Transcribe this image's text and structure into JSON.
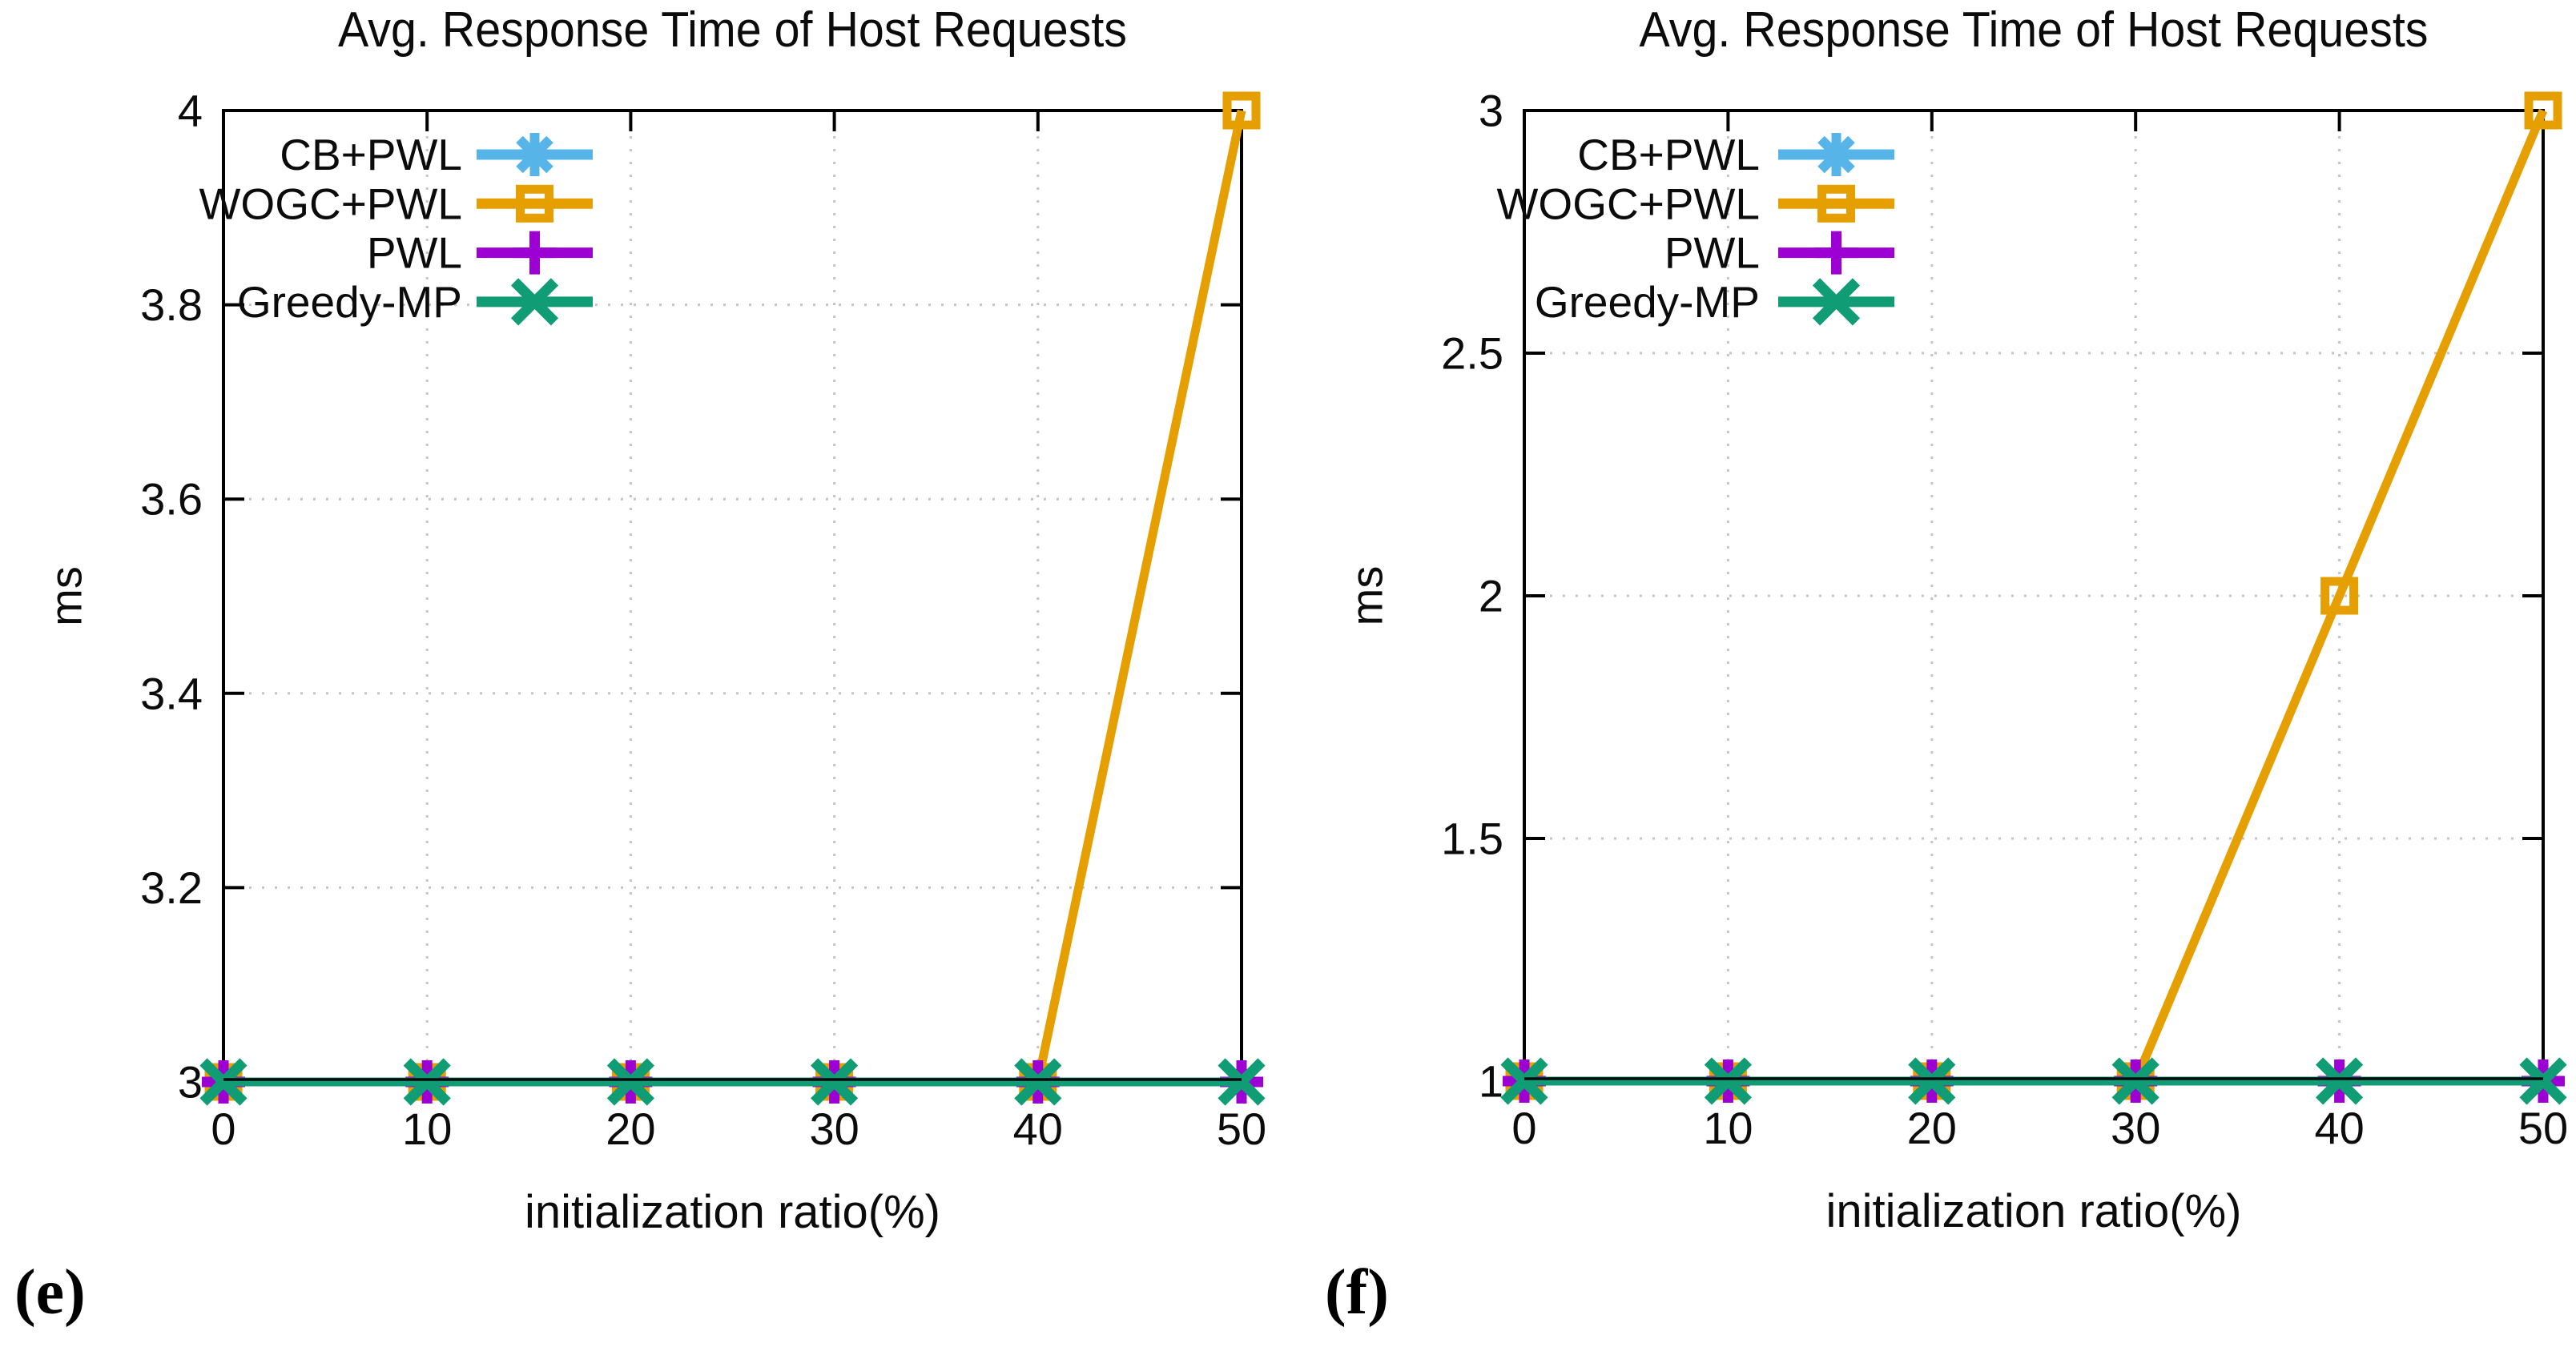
{
  "figure": {
    "background": "#ffffff",
    "grid_color": "#c4c4c4",
    "axis_color": "#000000",
    "text_color": "#0b0b0b"
  },
  "chart_data": [
    {
      "id": "e",
      "type": "line",
      "caption": "(e)",
      "title": "Avg. Response Time of Host Requests",
      "xlabel": "initialization ratio(%)",
      "ylabel": "ms",
      "xlim": [
        0,
        50
      ],
      "ylim": [
        3,
        4
      ],
      "x_ticks": [
        0,
        10,
        20,
        30,
        40,
        50
      ],
      "x_tick_labels": [
        "0",
        "10",
        "20",
        "30",
        "40",
        "50"
      ],
      "y_ticks": [
        3,
        3.2,
        3.4,
        3.6,
        3.8,
        4
      ],
      "y_tick_labels": [
        "3",
        "3.2",
        "3.4",
        "3.6",
        "3.8",
        "4"
      ],
      "grid": true,
      "legend_position": "top-left-inside",
      "x": [
        0,
        10,
        20,
        30,
        40,
        50
      ],
      "series": [
        {
          "name": "CB+PWL",
          "color": "#56B4E9",
          "marker": "asterisk",
          "values": [
            3,
            3,
            3,
            3,
            3,
            3
          ]
        },
        {
          "name": "WOGC+PWL",
          "color": "#E69F00",
          "marker": "open-square",
          "values": [
            3,
            3,
            3,
            3,
            3,
            4
          ]
        },
        {
          "name": "PWL",
          "color": "#9C00D3",
          "marker": "plus",
          "values": [
            3,
            3,
            3,
            3,
            3,
            3
          ]
        },
        {
          "name": "Greedy-MP",
          "color": "#109C74",
          "marker": "x-cross",
          "values": [
            3,
            3,
            3,
            3,
            3,
            3
          ]
        }
      ]
    },
    {
      "id": "f",
      "type": "line",
      "caption": "(f)",
      "title": "Avg. Response Time of Host Requests",
      "xlabel": "initialization ratio(%)",
      "ylabel": "ms",
      "xlim": [
        0,
        50
      ],
      "ylim": [
        1,
        3
      ],
      "x_ticks": [
        0,
        10,
        20,
        30,
        40,
        50
      ],
      "x_tick_labels": [
        "0",
        "10",
        "20",
        "30",
        "40",
        "50"
      ],
      "y_ticks": [
        1,
        1.5,
        2,
        2.5,
        3
      ],
      "y_tick_labels": [
        "1",
        "1.5",
        "2",
        "2.5",
        "3"
      ],
      "grid": true,
      "legend_position": "top-left-inside",
      "x": [
        0,
        10,
        20,
        30,
        40,
        50
      ],
      "series": [
        {
          "name": "CB+PWL",
          "color": "#56B4E9",
          "marker": "asterisk",
          "values": [
            1,
            1,
            1,
            1,
            1,
            1
          ]
        },
        {
          "name": "WOGC+PWL",
          "color": "#E69F00",
          "marker": "open-square",
          "values": [
            1,
            1,
            1,
            1,
            2,
            3
          ]
        },
        {
          "name": "PWL",
          "color": "#9C00D3",
          "marker": "plus",
          "values": [
            1,
            1,
            1,
            1,
            1,
            1
          ]
        },
        {
          "name": "Greedy-MP",
          "color": "#109C74",
          "marker": "x-cross",
          "values": [
            1,
            1,
            1,
            1,
            1,
            1
          ]
        }
      ]
    }
  ]
}
